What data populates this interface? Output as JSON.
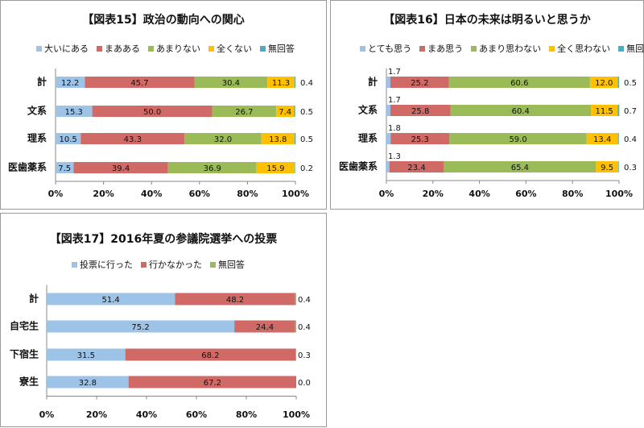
{
  "chart_data": [
    {
      "type": "bar",
      "orientation": "horizontal",
      "stacked": "percent",
      "title": "【図表15】政治の動向への関心",
      "categories": [
        "計",
        "文系",
        "理系",
        "医歯薬系"
      ],
      "series": [
        {
          "name": "大いにある",
          "color": "#9dc3e6",
          "values": [
            12.2,
            15.3,
            10.5,
            7.5
          ]
        },
        {
          "name": "まあある",
          "color": "#d06a67",
          "values": [
            45.7,
            50.0,
            43.3,
            39.4
          ]
        },
        {
          "name": "あまりない",
          "color": "#9bbb59",
          "values": [
            30.4,
            26.7,
            32.0,
            36.9
          ]
        },
        {
          "name": "全くない",
          "color": "#ffc000",
          "values": [
            11.3,
            7.4,
            13.8,
            15.9
          ]
        },
        {
          "name": "無回答",
          "color": "#4bacc6",
          "values": [
            0.4,
            0.5,
            0.5,
            0.2
          ]
        }
      ],
      "labels": [
        [
          "12.2",
          "45.7",
          "30.4",
          "11.3",
          "0.4"
        ],
        [
          "15.3",
          "50.0",
          "26.7",
          "7.4",
          "0.5"
        ],
        [
          "10.5",
          "43.3",
          "32.0",
          "13.8",
          "0.5"
        ],
        [
          "7.5",
          "39.4",
          "36.9",
          "15.9",
          "0.2"
        ]
      ],
      "xlim": [
        0,
        100
      ],
      "xticks": [
        "0%",
        "20%",
        "40%",
        "60%",
        "80%",
        "100%"
      ],
      "legend": "top",
      "grid": false
    },
    {
      "type": "bar",
      "orientation": "horizontal",
      "stacked": "percent",
      "title": "【図表16】日本の未来は明るいと思うか",
      "categories": [
        "計",
        "文系",
        "理系",
        "医歯薬系"
      ],
      "series": [
        {
          "name": "とても思う",
          "color": "#9dc3e6",
          "values": [
            1.7,
            1.7,
            1.8,
            1.3
          ]
        },
        {
          "name": "まあ思う",
          "color": "#d06a67",
          "values": [
            25.2,
            25.8,
            25.3,
            23.4
          ]
        },
        {
          "name": "あまり思わない",
          "color": "#9bbb59",
          "values": [
            60.6,
            60.4,
            59.0,
            65.4
          ]
        },
        {
          "name": "全く思わない",
          "color": "#ffc000",
          "values": [
            12.0,
            11.5,
            13.4,
            9.5
          ]
        },
        {
          "name": "無回答",
          "color": "#4bacc6",
          "values": [
            0.5,
            0.7,
            0.4,
            0.3
          ]
        }
      ],
      "labels": [
        [
          "1.7",
          "25.2",
          "60.6",
          "12.0",
          "0.5"
        ],
        [
          "1.7",
          "25.8",
          "60.4",
          "11.5",
          "0.7"
        ],
        [
          "1.8",
          "25.3",
          "59.0",
          "13.4",
          "0.4"
        ],
        [
          "1.3",
          "23.4",
          "65.4",
          "9.5",
          "0.3"
        ]
      ],
      "xlim": [
        0,
        100
      ],
      "xticks": [
        "0%",
        "20%",
        "40%",
        "60%",
        "80%",
        "100%"
      ],
      "legend": "top",
      "grid": false
    },
    {
      "type": "bar",
      "orientation": "horizontal",
      "stacked": "percent",
      "title": "【図表17】2016年夏の参議院選挙への投票",
      "categories": [
        "計",
        "自宅生",
        "下宿生",
        "寮生"
      ],
      "series": [
        {
          "name": "投票に行った",
          "color": "#9dc3e6",
          "values": [
            51.4,
            75.2,
            31.5,
            32.8
          ]
        },
        {
          "name": "行かなかった",
          "color": "#d06a67",
          "values": [
            48.2,
            24.4,
            68.2,
            67.2
          ]
        },
        {
          "name": "無回答",
          "color": "#9bbb59",
          "values": [
            0.4,
            0.4,
            0.3,
            0.0
          ]
        }
      ],
      "labels": [
        [
          "51.4",
          "48.2",
          "0.4"
        ],
        [
          "75.2",
          "24.4",
          "0.4"
        ],
        [
          "31.5",
          "68.2",
          "0.3"
        ],
        [
          "32.8",
          "67.2",
          "0.0"
        ]
      ],
      "xlim": [
        0,
        100
      ],
      "xticks": [
        "0%",
        "20%",
        "40%",
        "60%",
        "80%",
        "100%"
      ],
      "legend": "top",
      "grid": false
    }
  ]
}
